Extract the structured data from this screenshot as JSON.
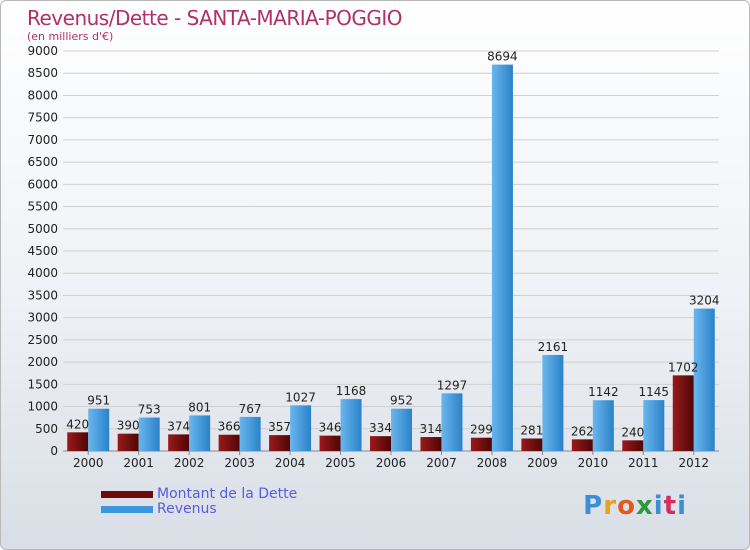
{
  "header": {
    "title": "Revenus/Dette - SANTA-MARIA-POGGIO",
    "subtitle": "(en milliers d'€)"
  },
  "legend": {
    "items": [
      {
        "label": "Montant de la Dette",
        "color": "#6e0c0c"
      },
      {
        "label": "Revenus",
        "color": "#3a96dd"
      }
    ]
  },
  "logo": {
    "letters": [
      "P",
      "r",
      "o",
      "x",
      "i",
      "t",
      "i"
    ],
    "colors": [
      "#3a8fd6",
      "#e8a020",
      "#e05a20",
      "#2a9a3a",
      "#3a8fd6",
      "#d03060",
      "#3a8fd6"
    ]
  },
  "colors": {
    "debt": "#6e0c0c",
    "revenue": "#3a96dd",
    "grid": "#d0d0d0",
    "axis_text": "#222222"
  },
  "chart_data": {
    "type": "bar",
    "title": "Revenus/Dette - SANTA-MARIA-POGGIO",
    "subtitle": "(en milliers d'€)",
    "categories": [
      "2000",
      "2001",
      "2002",
      "2003",
      "2004",
      "2005",
      "2006",
      "2007",
      "2008",
      "2009",
      "2010",
      "2011",
      "2012"
    ],
    "series": [
      {
        "name": "Montant de la Dette",
        "values": [
          420,
          390,
          374,
          366,
          357,
          346,
          334,
          314,
          299,
          281,
          262,
          240,
          1702
        ]
      },
      {
        "name": "Revenus",
        "values": [
          951,
          753,
          801,
          767,
          1027,
          1168,
          952,
          1297,
          8694,
          2161,
          1142,
          1145,
          3204
        ]
      }
    ],
    "ylim": [
      0,
      9000
    ],
    "yticks": [
      0,
      500,
      1000,
      1500,
      2000,
      2500,
      3000,
      3500,
      4000,
      4500,
      5000,
      5500,
      6000,
      6500,
      7000,
      7500,
      8000,
      8500,
      9000
    ],
    "grid": true,
    "legend_position": "bottom-left"
  }
}
